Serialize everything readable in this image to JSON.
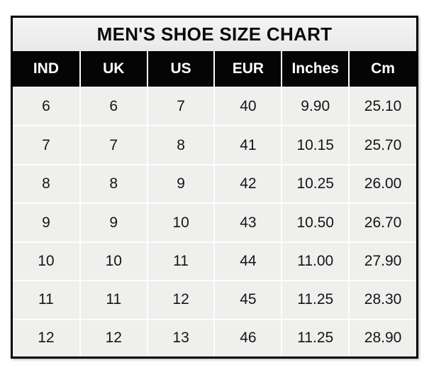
{
  "page": {
    "background_color": "#ffffff"
  },
  "chart_data": {
    "type": "table",
    "title": "MEN'S SHOE SIZE CHART",
    "columns": [
      "IND",
      "UK",
      "US",
      "EUR",
      "Inches",
      "Cm"
    ],
    "rows": [
      [
        "6",
        "6",
        "7",
        "40",
        "9.90",
        "25.10"
      ],
      [
        "7",
        "7",
        "8",
        "41",
        "10.15",
        "25.70"
      ],
      [
        "8",
        "8",
        "9",
        "42",
        "10.25",
        "26.00"
      ],
      [
        "9",
        "9",
        "10",
        "43",
        "10.50",
        "26.70"
      ],
      [
        "10",
        "10",
        "11",
        "44",
        "11.00",
        "27.90"
      ],
      [
        "11",
        "11",
        "12",
        "45",
        "11.25",
        "28.30"
      ],
      [
        "12",
        "12",
        "13",
        "46",
        "11.25",
        "28.90"
      ]
    ],
    "layout": {
      "grid": "on",
      "header_position": "top",
      "title_position": "top"
    }
  },
  "colors": {
    "outer_border": "#000000",
    "title_background": "#ededed",
    "header_background": "#050505",
    "header_text": "#ffffff",
    "cell_background": "#efefee",
    "cell_text": "#151515",
    "gridline": "#fdfdfd"
  }
}
